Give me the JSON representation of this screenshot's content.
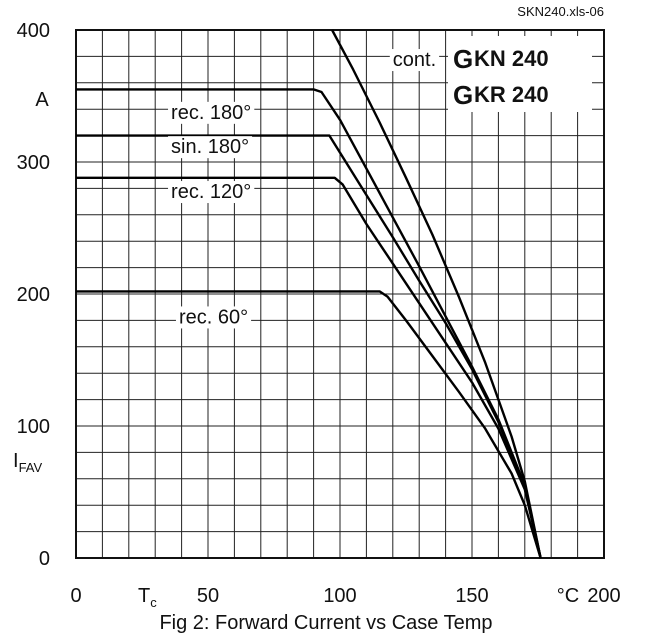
{
  "chart_data": {
    "type": "line",
    "source_label": "SKN240.xls-06",
    "xlim": [
      0,
      200
    ],
    "ylim": [
      0,
      400
    ],
    "x_ticks": [
      0,
      50,
      100,
      150,
      200
    ],
    "x_tick_labels": [
      "0",
      "50",
      "100",
      "150",
      "200"
    ],
    "y_ticks": [
      0,
      100,
      200,
      300,
      400
    ],
    "y_tick_labels": [
      "0",
      "100",
      "200",
      "300",
      "400"
    ],
    "x_symbol": "T",
    "x_symbol_sub": "c",
    "x_unit": "°C",
    "y_symbol": "I",
    "y_symbol_sub": "FAV",
    "y_unit": "A",
    "legend": {
      "mark": "G",
      "lines": [
        "KN 240",
        "KR 240"
      ]
    },
    "grid": true,
    "series": [
      {
        "name": "cont.",
        "x": [
          97,
          105,
          115,
          125,
          135,
          145,
          155,
          165,
          170,
          176
        ],
        "y": [
          400,
          370,
          330,
          288,
          245,
          198,
          148,
          92,
          58,
          0
        ]
      },
      {
        "name": "rec. 180°",
        "x": [
          0,
          90,
          93,
          100,
          110,
          120,
          130,
          140,
          150,
          160,
          170,
          176
        ],
        "y": [
          355,
          355,
          353,
          332,
          295,
          258,
          221,
          183,
          145,
          105,
          55,
          0
        ]
      },
      {
        "name": "sin. 180°",
        "x": [
          0,
          96,
          110,
          120,
          130,
          140,
          150,
          160,
          170,
          176
        ],
        "y": [
          320,
          320,
          275,
          243,
          210,
          178,
          143,
          103,
          53,
          0
        ]
      },
      {
        "name": "rec. 120°",
        "x": [
          0,
          98,
          101,
          110,
          120,
          130,
          140,
          150,
          160,
          170,
          176
        ],
        "y": [
          288,
          288,
          283,
          253,
          223,
          193,
          163,
          133,
          98,
          52,
          0
        ]
      },
      {
        "name": "rec. 60°",
        "x": [
          0,
          115,
          118,
          125,
          135,
          145,
          155,
          165,
          170,
          176
        ],
        "y": [
          202,
          202,
          198,
          180,
          153,
          126,
          98,
          64,
          40,
          0
        ]
      }
    ],
    "annotations": [
      {
        "text": "cont.",
        "x": 120,
        "y": 378
      },
      {
        "text": "rec. 180°",
        "x": 36,
        "y": 338
      },
      {
        "text": "sin. 180°",
        "x": 36,
        "y": 312
      },
      {
        "text": "rec. 120°",
        "x": 36,
        "y": 278
      },
      {
        "text": "rec. 60°",
        "x": 39,
        "y": 183
      }
    ]
  },
  "caption": "Fig 2: Forward Current vs Case Temp"
}
